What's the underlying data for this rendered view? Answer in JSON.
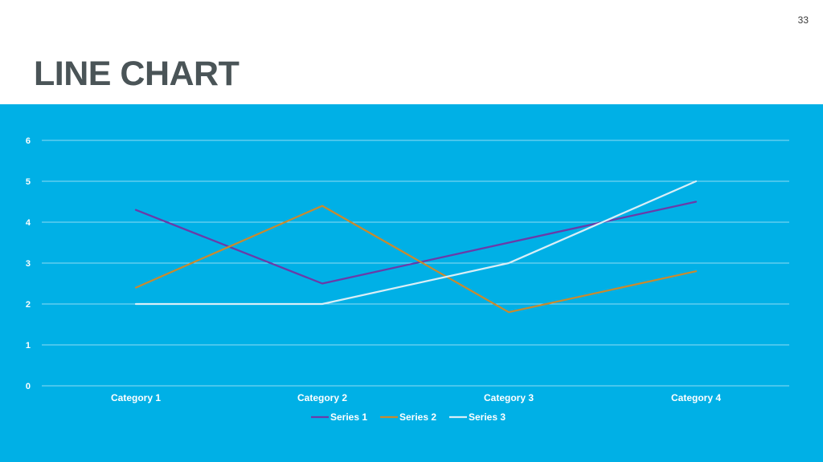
{
  "page": {
    "number": "33",
    "title": "LINE CHART"
  },
  "colors": {
    "panel": "#00b0e6",
    "grid": "#8fdcf4",
    "title": "#4a5457"
  },
  "chart_data": {
    "type": "line",
    "title": "",
    "xlabel": "",
    "ylabel": "",
    "categories": [
      "Category 1",
      "Category 2",
      "Category 3",
      "Category 4"
    ],
    "ylim": [
      0,
      6
    ],
    "yticks": [
      0,
      1,
      2,
      3,
      4,
      5,
      6
    ],
    "grid": true,
    "legend": "bottom",
    "series": [
      {
        "name": "Series 1",
        "values": [
          4.3,
          2.5,
          3.5,
          4.5
        ],
        "color": "#6b3aa8"
      },
      {
        "name": "Series 2",
        "values": [
          2.4,
          4.4,
          1.8,
          2.8
        ],
        "color": "#c98a2e"
      },
      {
        "name": "Series 3",
        "values": [
          2.0,
          2.0,
          3.0,
          5.0
        ],
        "color": "#d9eef7"
      }
    ]
  }
}
